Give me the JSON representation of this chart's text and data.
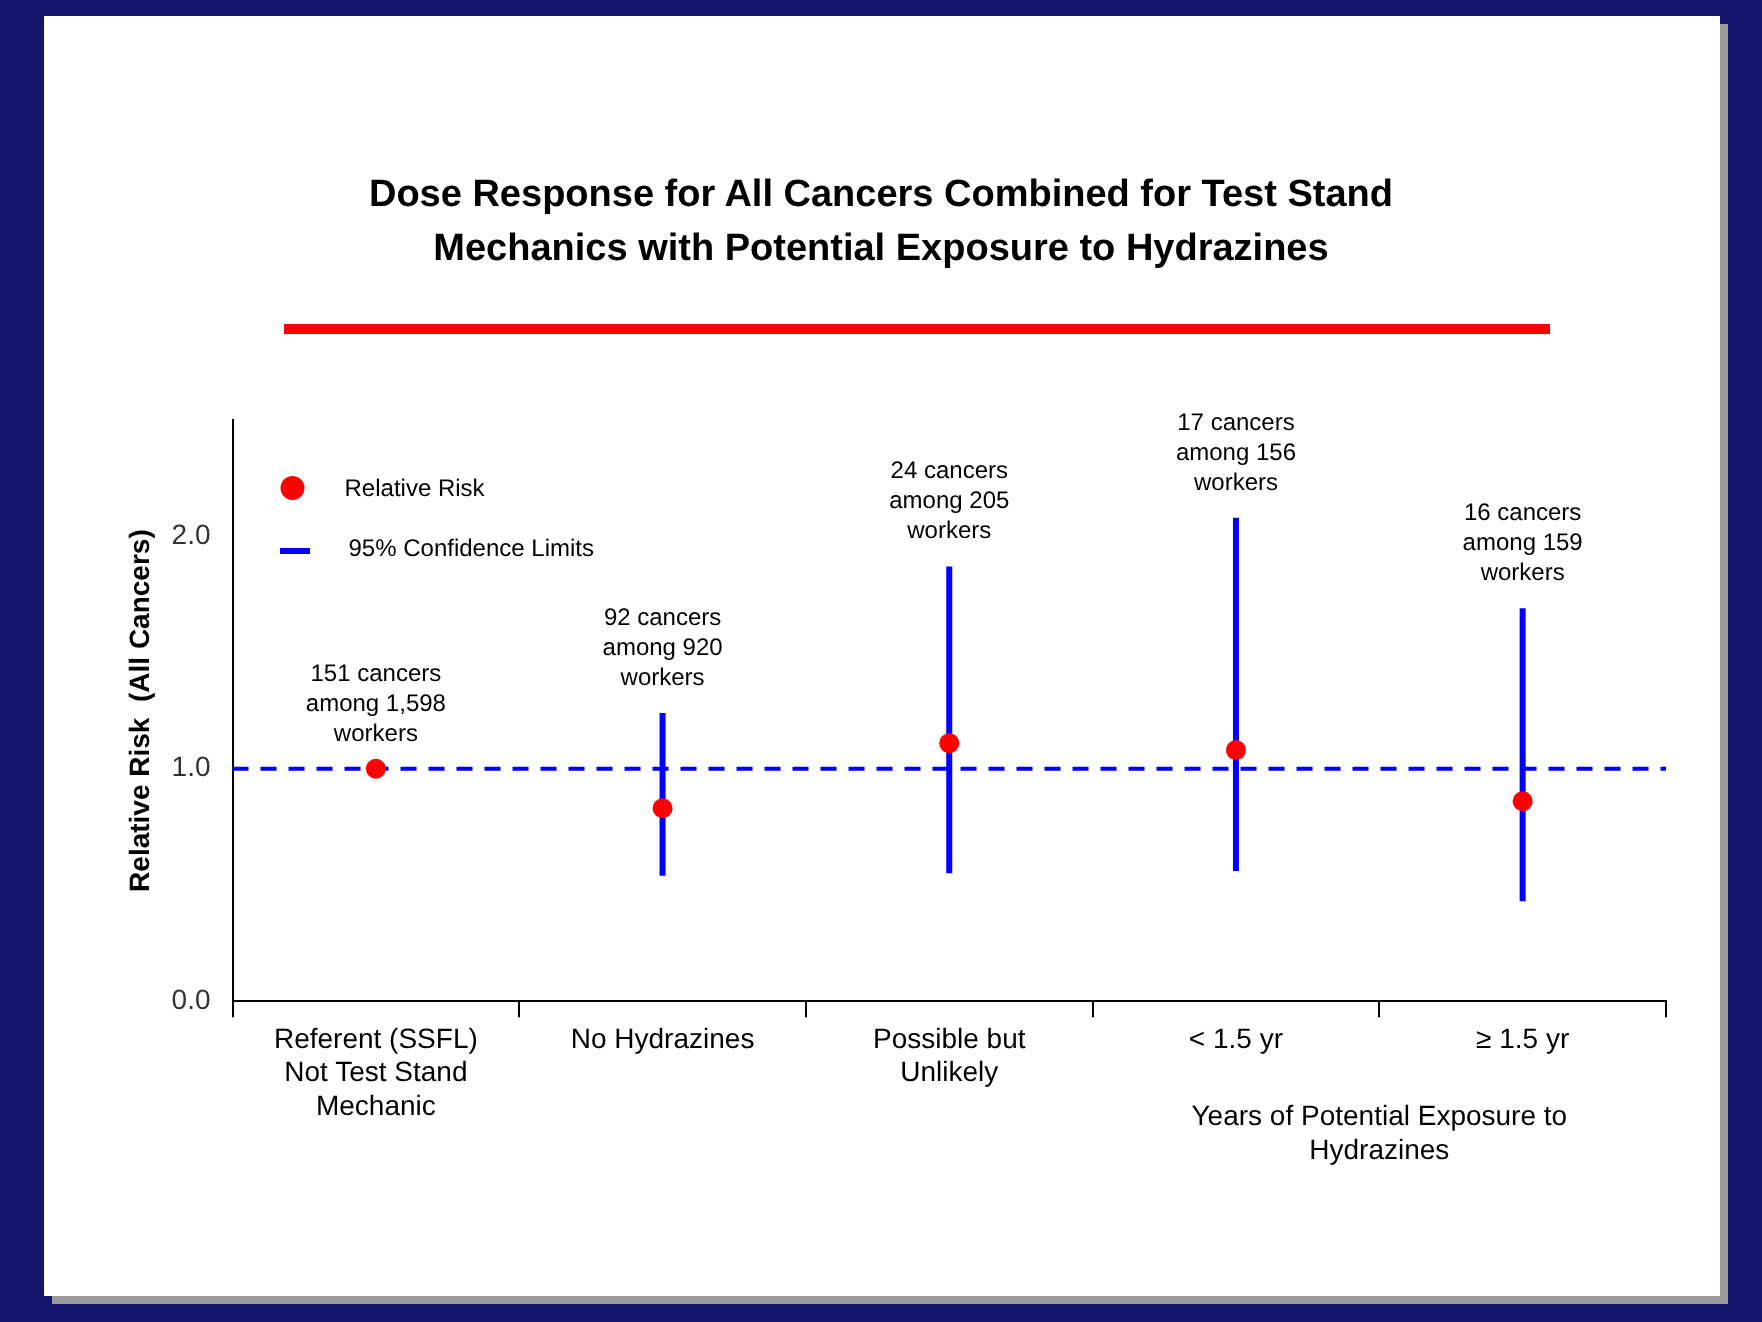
{
  "chart_data": {
    "type": "scatter",
    "title": "Dose Response for All Cancers Combined for Test Stand Mechanics with Potential Exposure to Hydrazines",
    "ylabel": "Relative Risk  (All Cancers)",
    "xlabel": "Years of Potential Exposure to Hydrazines",
    "categories": [
      "Referent (SSFL) Not Test Stand Mechanic",
      "No Hydrazines",
      "Possible but Unlikely",
      "< 1.5 yr",
      "≥ 1.5 yr"
    ],
    "series": [
      {
        "name": "Relative Risk",
        "color": "#ff0000",
        "values": [
          1.0,
          0.83,
          1.11,
          1.08,
          0.86
        ],
        "errors": [
          null,
          [
            0.54,
            1.24
          ],
          [
            0.55,
            1.87
          ],
          [
            0.56,
            2.08
          ],
          [
            0.43,
            1.69
          ]
        ]
      }
    ],
    "ylim": [
      0,
      2.5
    ],
    "yticks": [
      {
        "value": 0,
        "label": "0.0"
      },
      {
        "value": 1,
        "label": "1.0"
      },
      {
        "value": 2,
        "label": "2.0"
      }
    ],
    "ref_lines": [
      {
        "axis": "y",
        "value": 1,
        "label": null,
        "color": "#0000ff",
        "line_style": "dashed"
      }
    ],
    "legend": "top left",
    "marker": "circle",
    "annotations": [
      "95% Confidence Limits",
      {
        "text": "151 cancers among 1,598 workers",
        "x": "Referent (SSFL) Not Test Stand Mechanic",
        "y": 1.0
      },
      {
        "text": "92 cancers among 920 workers",
        "x": "No Hydrazines",
        "y": 1.24
      },
      {
        "text": "24 cancers among 205 workers",
        "x": "Possible but Unlikely",
        "y": 1.87
      },
      {
        "text": "17 cancers among 156 workers",
        "x": "< 1.5 yr",
        "y": 2.08
      },
      {
        "text": "16 cancers among 159 workers",
        "x": "≥ 1.5 yr",
        "y": 1.69
      }
    ]
  }
}
